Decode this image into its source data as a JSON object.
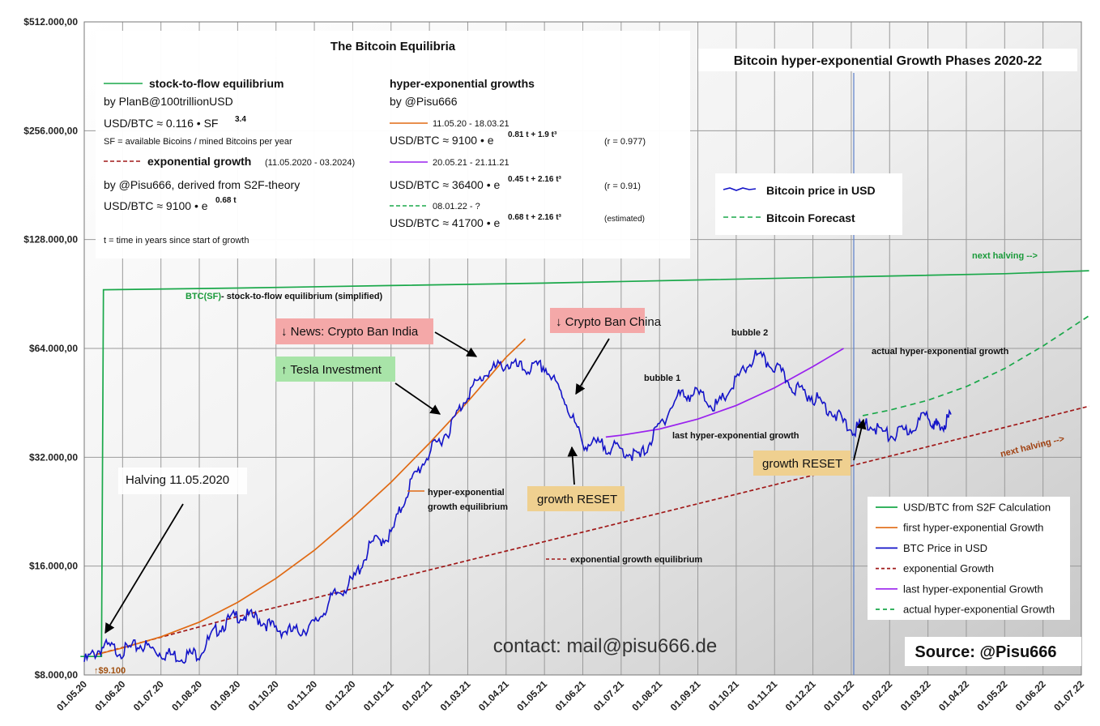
{
  "chart_data": {
    "type": "line",
    "title": "Bitcoin hyper-exponential Growth Phases 2020-22",
    "y_scale": "log2",
    "ylim": [
      8000,
      512000
    ],
    "y_ticks": [
      "$512.000,00",
      "$256.000,00",
      "$128.000,00",
      "$64.000,00",
      "$32.000,00",
      "$16.000,00",
      "$8.000,00"
    ],
    "x_ticks": [
      "01.05.20",
      "01.06.20",
      "01.07.20",
      "01.08.20",
      "01.09.20",
      "01.10.20",
      "01.11.20",
      "01.12.20",
      "01.01.21",
      "01.02.21",
      "01.03.21",
      "01.04.21",
      "01.05.21",
      "01.06.21",
      "01.07.21",
      "01.08.21",
      "01.09.21",
      "01.10.21",
      "01.11.21",
      "01.12.21",
      "01.01.22",
      "01.02.22",
      "01.03.22",
      "01.04.22",
      "01.05.22",
      "01.06.22",
      "01.07.22"
    ],
    "grid": true,
    "series": [
      {
        "name": "BTC Price in USD",
        "color": "#1414c8",
        "x": [
          0,
          0.5,
          1,
          1.5,
          2,
          2.5,
          3,
          3.5,
          4,
          4.5,
          5,
          5.5,
          6,
          6.5,
          7,
          7.5,
          8,
          8.5,
          9,
          9.5,
          10,
          10.5,
          11,
          11.5,
          12,
          12.5,
          13,
          13.5,
          14,
          14.5,
          15,
          15.5,
          16,
          16.5,
          17,
          17.5,
          18,
          18.5,
          19,
          19.5,
          20,
          20.5,
          21,
          21.5,
          22,
          22.3,
          22.6
        ],
        "y": [
          8700,
          9600,
          9300,
          9700,
          9200,
          9000,
          9200,
          10800,
          11700,
          11500,
          10700,
          10500,
          11000,
          13200,
          14500,
          18500,
          19500,
          27000,
          33000,
          38000,
          48000,
          55000,
          58000,
          56000,
          57000,
          47000,
          35000,
          34500,
          33500,
          32000,
          39000,
          47500,
          48000,
          44000,
          52000,
          61000,
          57000,
          50000,
          47000,
          43000,
          38000,
          39500,
          36500,
          38000,
          42000,
          38000,
          42000
        ]
      },
      {
        "name": "USD/BTC from S2F Calculation",
        "color": "#1aa84a",
        "x": [
          -0.1,
          0.45,
          0.5,
          4,
          8,
          12,
          16,
          20,
          24,
          26.2
        ],
        "y": [
          9000,
          9000,
          93000,
          94000,
          95500,
          97000,
          99000,
          101000,
          103000,
          105000
        ]
      },
      {
        "name": "first hyper-exponential Growth",
        "color": "#e06a14",
        "x": [
          0.3,
          1,
          2,
          3,
          4,
          5,
          6,
          7,
          8,
          9,
          10,
          10.5,
          11,
          11.5
        ],
        "y": [
          9100,
          9500,
          10200,
          11200,
          12700,
          14800,
          17700,
          21800,
          27300,
          35000,
          45600,
          52500,
          60500,
          68000
        ]
      },
      {
        "name": "exponential Growth",
        "color": "#a01818",
        "x": [
          0.3,
          4,
          8,
          12,
          16,
          20,
          24,
          26.2
        ],
        "y": [
          9100,
          11600,
          14700,
          18700,
          23800,
          30300,
          38700,
          44300
        ]
      },
      {
        "name": "last hyper-exponential Growth",
        "color": "#9a22ee",
        "x": [
          13.6,
          14,
          15,
          16,
          17,
          18,
          19,
          19.8
        ],
        "y": [
          36400,
          36800,
          38300,
          40800,
          44500,
          49800,
          57000,
          64000
        ]
      },
      {
        "name": "actual hyper-exponential Growth",
        "color": "#1aa84a",
        "x": [
          20.3,
          21,
          22,
          23,
          24,
          25,
          26.2
        ],
        "y": [
          41700,
          43200,
          46000,
          50200,
          56300,
          65000,
          78800
        ]
      }
    ]
  },
  "annotations": {
    "halving": "Halving 11.05.2020",
    "price_start": "↑$9.100",
    "news_india": "↓ News: Crypto Ban India",
    "tesla": "↑ Tesla Investment",
    "ban_china": "↓ Crypto Ban China",
    "reset1": "growth RESET",
    "reset2": "growth RESET",
    "bubble1": "bubble 1",
    "bubble2": "bubble 2",
    "last_hyper": "last hyper-exponential growth",
    "actual_hyper": "actual hyper-exponential growth",
    "hyper_eq_1": "hyper-exponential",
    "hyper_eq_2": "growth  equilibrium",
    "exp_eq": "exponential growth equilibrium",
    "next_halving_1": "next halving -->",
    "next_halving_2": "next halving -->",
    "btc_sf_1": "BTC(SF)",
    "btc_sf_2": " -  stock-to-flow  equilibrium (simplified)",
    "contact": "contact: mail@pisu666.de",
    "source": "Source: @Pisu666"
  },
  "info_box": {
    "title": "The  Bitcoin  Equilibria",
    "sf_title": "stock-to-flow equilibrium",
    "sf_by": "by PlanB@100trillionUSD",
    "sf_formula": "USD/BTC ≈ 0.116 • SF",
    "sf_exp": "3.4",
    "sf_note": "SF = available Bicoins / mined Bitcoins per year",
    "exp_title": "exponential growth",
    "exp_range": "(11.05.2020 - 03.2024)",
    "exp_by": "by @Pisu666, derived from S2F-theory",
    "exp_formula": "USD/BTC ≈ 9100 • e",
    "exp_exp": "0.68 t",
    "t_note": "t = time in years since start of growth",
    "hyper_title": "hyper-exponential growths",
    "hyper_by": "by @Pisu666",
    "h1_range": "11.05.20  -  18.03.21",
    "h1_formula": "USD/BTC ≈ 9100 • e",
    "h1_exp": "0.81 t + 1.9 t³",
    "h1_r": "(r = 0.977)",
    "h2_range": "20.05.21  -  21.11.21",
    "h2_formula": "USD/BTC ≈ 36400 • e",
    "h2_exp": "0.45  t + 2.16 t³",
    "h2_r": "(r = 0.91)",
    "h3_range": "08.01.22  -  ?",
    "h3_formula": "USD/BTC ≈ 41700 • e",
    "h3_exp": "0.68  t + 2.16 t³",
    "h3_r": "(estimated)"
  },
  "legend_top": {
    "price": "Bitcoin price in USD",
    "forecast": "Bitcoin Forecast"
  },
  "legend_bottom": [
    "USD/BTC from S2F Calculation",
    "first hyper-exponential Growth",
    "BTC Price in USD",
    "exponential Growth",
    "last hyper-exponential Growth",
    "actual hyper-exponential Growth"
  ]
}
